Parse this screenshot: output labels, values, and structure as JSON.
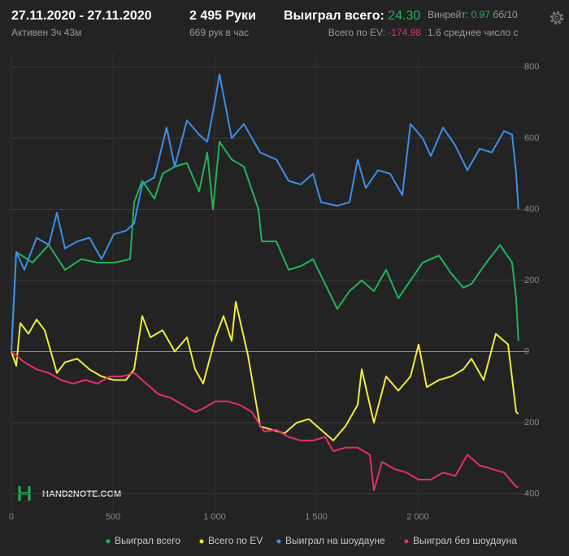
{
  "header": {
    "date_range": "27.11.2020 - 27.11.2020",
    "active": "Активен 3ч 43м",
    "hands": "2 495 Руки",
    "hands_per_hour": "669 рук в час",
    "won_total_label": "Выиграл всего:",
    "won_total_value": "24.30",
    "ev_total_label": "Всего по EV:",
    "ev_total_value": "-174.98",
    "winrate_label": "Винрейт:",
    "winrate_value": "0.97",
    "winrate_unit": "бб/10",
    "avg_text": "1.6 среднее число с",
    "watermark": "HAND2NOTE.COM"
  },
  "chart_data": {
    "type": "line",
    "xlim": [
      0,
      2500
    ],
    "xticks": [
      0,
      500,
      {
        "value": 1000,
        "label": "1 000"
      },
      {
        "value": 1500,
        "label": "1 500"
      },
      {
        "value": 2000,
        "label": "2 000"
      }
    ],
    "ylim": [
      -440,
      840
    ],
    "yticks": [
      {
        "value": -400,
        "label": "400"
      },
      {
        "value": -200,
        "label": "200"
      },
      0,
      200,
      400,
      600,
      800
    ],
    "grid": true,
    "legend": "bottom",
    "series": [
      {
        "name": "Выиграл всего",
        "color": "#22b35a",
        "x": [
          0,
          24,
          104,
          184,
          264,
          344,
          424,
          504,
          584,
          604,
          644,
          704,
          744,
          804,
          864,
          924,
          964,
          992,
          1024,
          1084,
          1144,
          1216,
          1232,
          1304,
          1364,
          1424,
          1484,
          1544,
          1604,
          1664,
          1724,
          1784,
          1844,
          1904,
          1964,
          2024,
          2104,
          2164,
          2224,
          2264,
          2324,
          2404,
          2464,
          2484,
          2495
        ],
        "values": [
          0,
          280,
          250,
          300,
          230,
          260,
          250,
          250,
          260,
          420,
          480,
          430,
          500,
          520,
          530,
          450,
          560,
          400,
          590,
          540,
          520,
          400,
          310,
          310,
          230,
          240,
          260,
          190,
          120,
          170,
          200,
          170,
          230,
          150,
          200,
          250,
          270,
          220,
          180,
          190,
          240,
          300,
          250,
          150,
          30
        ]
      },
      {
        "name": "Всего по EV",
        "color": "#f0ec3c",
        "x": [
          0,
          24,
          44,
          84,
          124,
          164,
          224,
          264,
          324,
          384,
          444,
          504,
          564,
          604,
          644,
          684,
          744,
          804,
          864,
          904,
          944,
          1004,
          1044,
          1084,
          1104,
          1164,
          1224,
          1284,
          1344,
          1404,
          1464,
          1524,
          1584,
          1644,
          1704,
          1724,
          1784,
          1844,
          1904,
          1964,
          2004,
          2044,
          2104,
          2164,
          2224,
          2264,
          2324,
          2384,
          2444,
          2484,
          2495
        ],
        "values": [
          0,
          -40,
          80,
          50,
          90,
          60,
          -60,
          -30,
          -20,
          -50,
          -70,
          -80,
          -80,
          -50,
          100,
          40,
          60,
          0,
          40,
          -50,
          -90,
          40,
          100,
          30,
          140,
          -10,
          -210,
          -220,
          -230,
          -200,
          -190,
          -220,
          -250,
          -210,
          -150,
          -50,
          -200,
          -70,
          -110,
          -70,
          20,
          -100,
          -80,
          -70,
          -50,
          -20,
          -80,
          50,
          20,
          -170,
          -175
        ]
      },
      {
        "name": "Выиграл на шоудауне",
        "color": "#3d8fe8",
        "x": [
          0,
          24,
          64,
          124,
          184,
          224,
          264,
          324,
          384,
          444,
          504,
          564,
          604,
          644,
          704,
          764,
          804,
          864,
          924,
          964,
          1004,
          1024,
          1084,
          1144,
          1204,
          1224,
          1304,
          1364,
          1424,
          1484,
          1524,
          1604,
          1664,
          1704,
          1744,
          1804,
          1864,
          1924,
          1964,
          2024,
          2064,
          2124,
          2184,
          2244,
          2304,
          2364,
          2424,
          2464,
          2484,
          2495
        ],
        "values": [
          0,
          280,
          230,
          320,
          300,
          390,
          290,
          310,
          320,
          260,
          330,
          340,
          360,
          470,
          490,
          630,
          520,
          650,
          610,
          590,
          710,
          780,
          600,
          640,
          580,
          560,
          540,
          480,
          470,
          500,
          420,
          410,
          420,
          540,
          460,
          510,
          500,
          440,
          640,
          600,
          550,
          630,
          580,
          510,
          570,
          560,
          620,
          610,
          500,
          400
        ]
      },
      {
        "name": "Выиграл без шоудауна",
        "color": "#e0306e",
        "x": [
          0,
          64,
          124,
          184,
          244,
          304,
          364,
          424,
          484,
          544,
          604,
          664,
          724,
          784,
          844,
          904,
          944,
          1004,
          1064,
          1124,
          1184,
          1244,
          1304,
          1364,
          1424,
          1484,
          1544,
          1584,
          1644,
          1704,
          1764,
          1784,
          1824,
          1884,
          1944,
          2004,
          2064,
          2124,
          2184,
          2244,
          2304,
          2364,
          2424,
          2484,
          2495
        ],
        "values": [
          0,
          -30,
          -50,
          -60,
          -80,
          -90,
          -80,
          -90,
          -70,
          -70,
          -60,
          -90,
          -120,
          -130,
          -150,
          -170,
          -160,
          -140,
          -140,
          -150,
          -170,
          -225,
          -220,
          -240,
          -250,
          -250,
          -240,
          -280,
          -270,
          -270,
          -290,
          -390,
          -310,
          -330,
          -340,
          -360,
          -360,
          -340,
          -350,
          -290,
          -320,
          -330,
          -340,
          -380,
          -380
        ]
      }
    ]
  }
}
